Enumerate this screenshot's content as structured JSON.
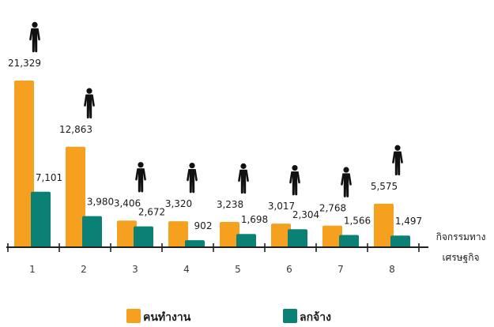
{
  "chart_data": {
    "type": "bar",
    "categories": [
      "1",
      "2",
      "3",
      "4",
      "5",
      "6",
      "7",
      "8"
    ],
    "series": [
      {
        "name": "คนทำงาน",
        "color": "#F5A01E",
        "values": [
          21329,
          12863,
          3406,
          3320,
          3238,
          3017,
          2768,
          5575
        ],
        "value_labels": [
          "21,329",
          "12,863",
          "3,406",
          "3,320",
          "3,238",
          "3,017",
          "2,768",
          "5,575"
        ]
      },
      {
        "name": "ลกจ้าง",
        "color": "#0B8074",
        "values": [
          7101,
          3980,
          2672,
          902,
          1698,
          2304,
          1566,
          1497
        ],
        "value_labels": [
          "7,101",
          "3,980",
          "2,672",
          "902",
          "1,698",
          "2,304",
          "1,566",
          "1,497"
        ]
      }
    ],
    "xlabel_lines": [
      "กิจกรรมทาง",
      "เศรษฐกิจ"
    ],
    "title": "",
    "ylabel": "",
    "ylim": [
      0,
      21329
    ],
    "grid": false,
    "legend": "bottom-center",
    "icon": "person-icon"
  }
}
